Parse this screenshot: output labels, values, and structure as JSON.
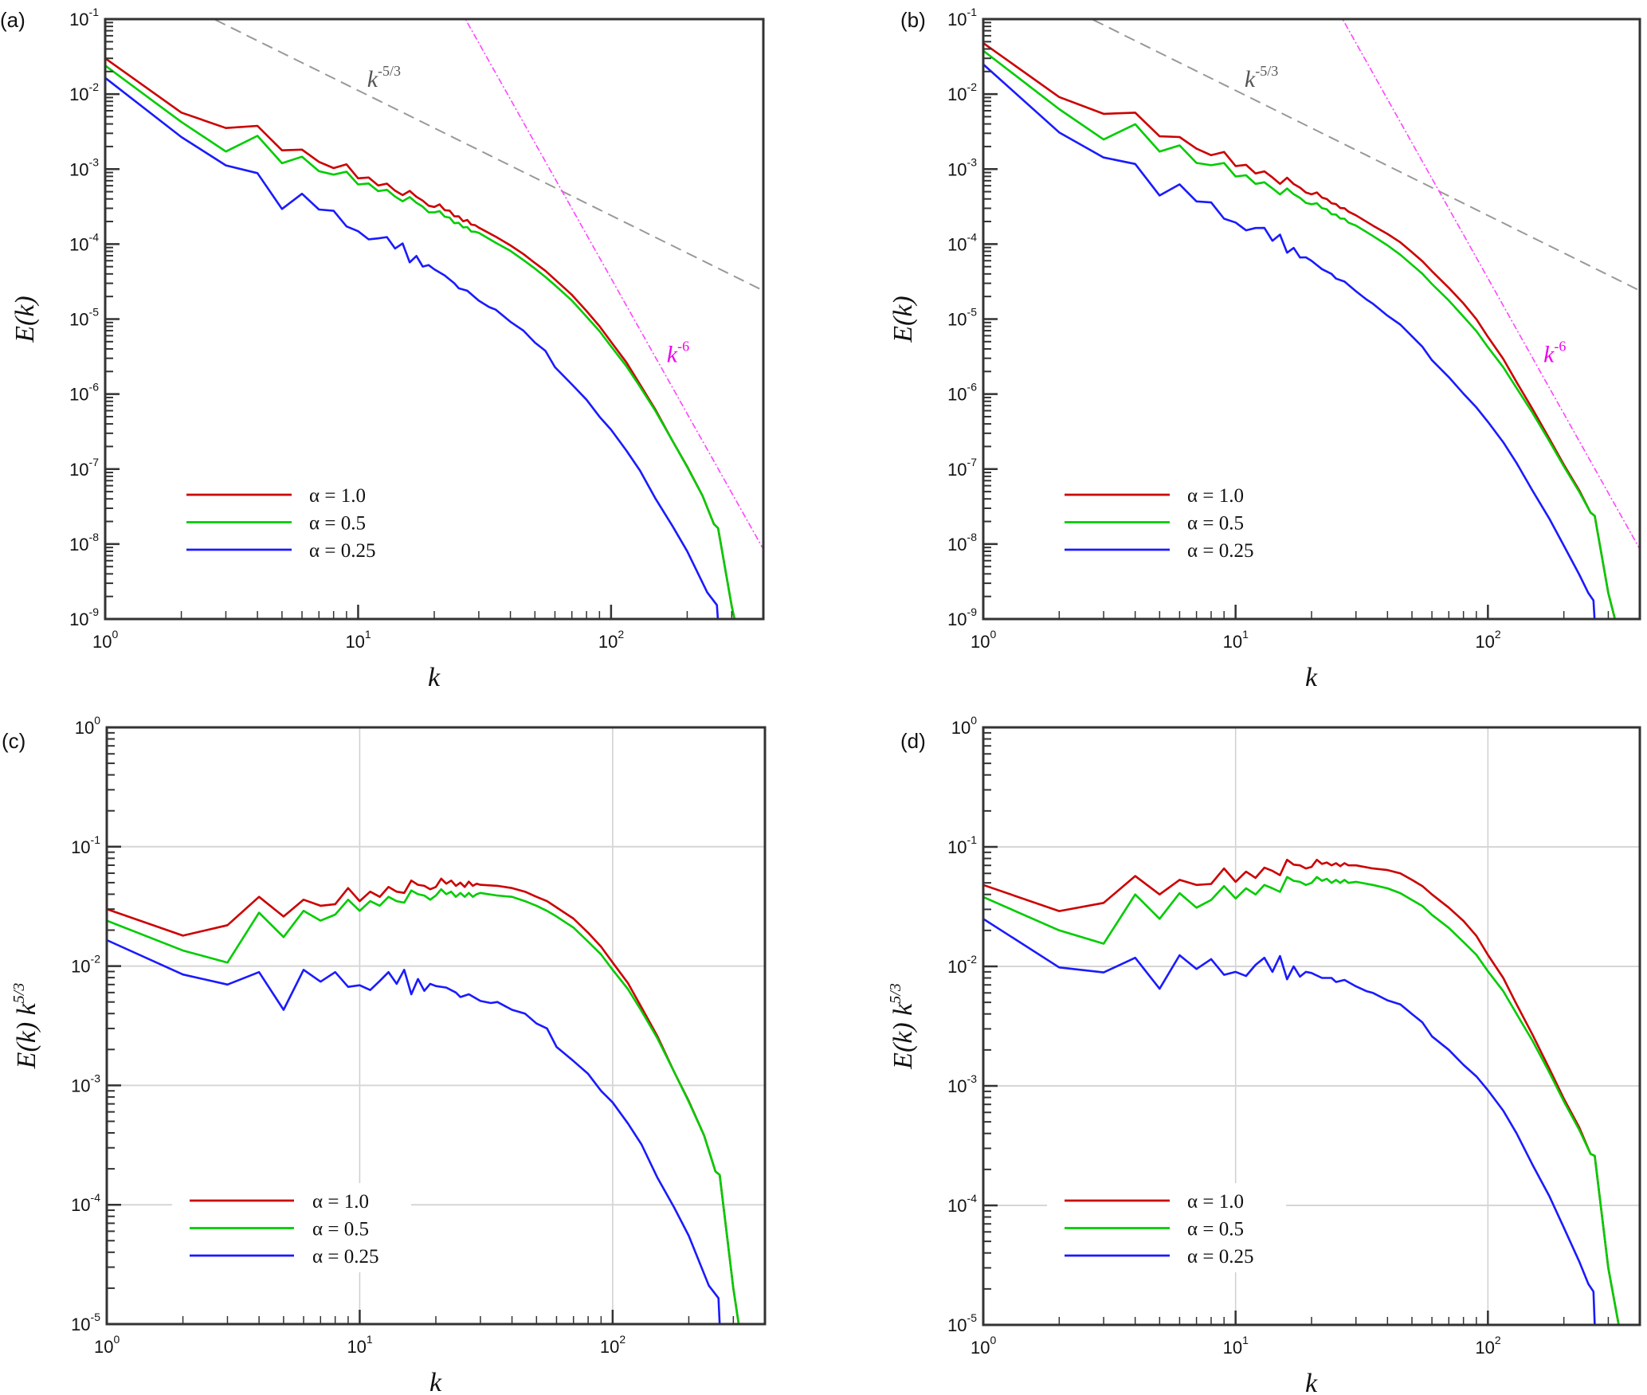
{
  "chart_data": [
    {
      "panel": "(a)",
      "type": "line",
      "xscale": "log",
      "yscale": "log",
      "xlabel": "k",
      "ylabel": "E(k)",
      "xlim": [
        1,
        400
      ],
      "ylim": [
        1e-09,
        0.1
      ],
      "xticks": [
        {
          "base": "10",
          "exp": "0"
        },
        {
          "base": "10",
          "exp": "1"
        },
        {
          "base": "10",
          "exp": "2"
        }
      ],
      "yticks": [
        {
          "base": "10",
          "exp": "-1"
        },
        {
          "base": "10",
          "exp": "-2"
        },
        {
          "base": "10",
          "exp": "-3"
        },
        {
          "base": "10",
          "exp": "-4"
        },
        {
          "base": "10",
          "exp": "-5"
        },
        {
          "base": "10",
          "exp": "-6"
        },
        {
          "base": "10",
          "exp": "-7"
        },
        {
          "base": "10",
          "exp": "-8"
        },
        {
          "base": "10",
          "exp": "-9"
        }
      ],
      "grid": false,
      "compensated": false,
      "source": "c",
      "reference_lines": [
        {
          "name": "k^-5/3",
          "slope": -1.6667,
          "coef": 0.52,
          "color": "#999999",
          "style": "dashed",
          "label": "k",
          "label_sup": "-5/3",
          "label_color": "#555555",
          "label_at_k": 11.5
        },
        {
          "name": "k^-6",
          "slope": -6,
          "coef": 35000000.0,
          "color": "#ff44ff",
          "style": "dashdot",
          "label": "k",
          "label_sup": "-6",
          "label_color": "#ee00ee",
          "label_at_k": 150
        }
      ],
      "legend": [
        {
          "label": "α = 1.0",
          "color": "#cc0000"
        },
        {
          "label": "α = 0.5",
          "color": "#00cc00"
        },
        {
          "label": "α = 0.25",
          "color": "#1a1aff"
        }
      ],
      "legend_position": "lower-left"
    },
    {
      "panel": "(b)",
      "type": "line",
      "xscale": "log",
      "yscale": "log",
      "xlabel": "k",
      "ylabel": "E(k)",
      "xlim": [
        1,
        400
      ],
      "ylim": [
        1e-09,
        0.1
      ],
      "xticks": [
        {
          "base": "10",
          "exp": "0"
        },
        {
          "base": "10",
          "exp": "1"
        },
        {
          "base": "10",
          "exp": "2"
        }
      ],
      "yticks": [
        {
          "base": "10",
          "exp": "-1"
        },
        {
          "base": "10",
          "exp": "-2"
        },
        {
          "base": "10",
          "exp": "-3"
        },
        {
          "base": "10",
          "exp": "-4"
        },
        {
          "base": "10",
          "exp": "-5"
        },
        {
          "base": "10",
          "exp": "-6"
        },
        {
          "base": "10",
          "exp": "-7"
        },
        {
          "base": "10",
          "exp": "-8"
        },
        {
          "base": "10",
          "exp": "-9"
        }
      ],
      "grid": false,
      "compensated": false,
      "source": "d",
      "reference_lines": [
        {
          "name": "k^-5/3",
          "slope": -1.6667,
          "coef": 0.52,
          "color": "#999999",
          "style": "dashed",
          "label": "k",
          "label_sup": "-5/3",
          "label_color": "#555555",
          "label_at_k": 11.5
        },
        {
          "name": "k^-6",
          "slope": -6,
          "coef": 35000000.0,
          "color": "#ff44ff",
          "style": "dashdot",
          "label": "k",
          "label_sup": "-6",
          "label_color": "#ee00ee",
          "label_at_k": 150
        }
      ],
      "legend": [
        {
          "label": "α = 1.0",
          "color": "#cc0000"
        },
        {
          "label": "α = 0.5",
          "color": "#00cc00"
        },
        {
          "label": "α = 0.25",
          "color": "#1a1aff"
        }
      ],
      "legend_position": "lower-left"
    },
    {
      "panel": "(c)",
      "type": "line",
      "xscale": "log",
      "yscale": "log",
      "xlabel": "k",
      "ylabel": "E(k) k",
      "ylabel_sup": "5/3",
      "xlim": [
        1,
        400
      ],
      "ylim": [
        1e-05,
        1
      ],
      "xticks": [
        {
          "base": "10",
          "exp": "0"
        },
        {
          "base": "10",
          "exp": "1"
        },
        {
          "base": "10",
          "exp": "2"
        }
      ],
      "yticks": [
        {
          "base": "10",
          "exp": "0"
        },
        {
          "base": "10",
          "exp": "-1"
        },
        {
          "base": "10",
          "exp": "-2"
        },
        {
          "base": "10",
          "exp": "-3"
        },
        {
          "base": "10",
          "exp": "-4"
        },
        {
          "base": "10",
          "exp": "-5"
        }
      ],
      "grid": true,
      "compensated": true,
      "series": [
        {
          "name": "α = 1.0",
          "color": "#cc0000",
          "k": [
            1,
            2,
            3,
            4,
            5,
            6,
            7,
            8,
            9,
            10,
            11,
            12,
            13,
            14,
            15,
            16,
            17,
            18,
            19,
            20,
            21,
            22,
            23,
            24,
            25,
            26,
            27,
            28,
            29,
            30,
            35,
            40,
            45,
            50,
            55,
            60,
            70,
            80,
            90,
            100,
            115,
            130,
            150,
            175,
            200,
            230,
            255,
            265,
            300,
            315
          ],
          "y": [
            0.03,
            0.018,
            0.022,
            0.038,
            0.026,
            0.036,
            0.032,
            0.033,
            0.045,
            0.035,
            0.042,
            0.038,
            0.046,
            0.042,
            0.041,
            0.052,
            0.048,
            0.047,
            0.044,
            0.046,
            0.054,
            0.049,
            0.052,
            0.047,
            0.05,
            0.046,
            0.051,
            0.047,
            0.049,
            0.048,
            0.047,
            0.045,
            0.042,
            0.038,
            0.035,
            0.031,
            0.025,
            0.019,
            0.0145,
            0.0107,
            0.0072,
            0.0045,
            0.0026,
            0.0013,
            0.00074,
            0.00038,
            0.00019,
            0.000178,
            2e-05,
            1e-05
          ]
        },
        {
          "name": "α = 0.5",
          "color": "#00cc00",
          "k": [
            1,
            2,
            3,
            4,
            5,
            6,
            7,
            8,
            9,
            10,
            11,
            12,
            13,
            14,
            15,
            16,
            17,
            18,
            19,
            20,
            21,
            22,
            23,
            24,
            25,
            26,
            27,
            28,
            29,
            30,
            35,
            40,
            45,
            50,
            55,
            60,
            70,
            80,
            90,
            100,
            115,
            130,
            150,
            175,
            200,
            230,
            255,
            265,
            300,
            315
          ],
          "y": [
            0.024,
            0.0135,
            0.0107,
            0.028,
            0.0175,
            0.029,
            0.024,
            0.027,
            0.036,
            0.029,
            0.035,
            0.032,
            0.038,
            0.035,
            0.034,
            0.043,
            0.04,
            0.039,
            0.036,
            0.039,
            0.044,
            0.04,
            0.042,
            0.038,
            0.041,
            0.038,
            0.041,
            0.038,
            0.04,
            0.041,
            0.039,
            0.038,
            0.035,
            0.032,
            0.029,
            0.026,
            0.021,
            0.016,
            0.0125,
            0.0093,
            0.0064,
            0.0042,
            0.0025,
            0.0013,
            0.00073,
            0.00038,
            0.00019,
            0.000178,
            2e-05,
            1e-05
          ]
        },
        {
          "name": "α = 0.25",
          "color": "#1a1aff",
          "k": [
            1,
            2,
            3,
            4,
            5,
            6,
            7,
            8,
            9,
            10,
            11,
            12,
            13,
            14,
            15,
            16,
            17,
            18,
            19,
            20,
            22,
            24,
            25,
            27,
            30,
            33,
            35,
            40,
            45,
            50,
            55,
            60,
            70,
            80,
            90,
            100,
            115,
            130,
            150,
            175,
            200,
            240,
            262,
            265
          ],
          "y": [
            0.0165,
            0.0085,
            0.007,
            0.0089,
            0.0043,
            0.0093,
            0.0074,
            0.0089,
            0.0067,
            0.0069,
            0.0063,
            0.0075,
            0.0089,
            0.0071,
            0.0093,
            0.0058,
            0.0078,
            0.0062,
            0.0071,
            0.0068,
            0.0066,
            0.006,
            0.0055,
            0.0058,
            0.0051,
            0.0049,
            0.005,
            0.0043,
            0.004,
            0.0033,
            0.003,
            0.0021,
            0.0016,
            0.00125,
            0.0009,
            0.00072,
            0.00048,
            0.00032,
            0.00017,
            9.5e-05,
            5.5e-05,
            2.1e-05,
            1.65e-05,
            1e-05
          ]
        }
      ],
      "legend": [
        {
          "label": "α = 1.0",
          "color": "#cc0000"
        },
        {
          "label": "α = 0.5",
          "color": "#00cc00"
        },
        {
          "label": "α = 0.25",
          "color": "#1a1aff"
        }
      ],
      "legend_position": "lower-left"
    },
    {
      "panel": "(d)",
      "type": "line",
      "xscale": "log",
      "yscale": "log",
      "xlabel": "k",
      "ylabel": "E(k) k",
      "ylabel_sup": "5/3",
      "xlim": [
        1,
        400
      ],
      "ylim": [
        1e-05,
        1
      ],
      "xticks": [
        {
          "base": "10",
          "exp": "0"
        },
        {
          "base": "10",
          "exp": "1"
        },
        {
          "base": "10",
          "exp": "2"
        }
      ],
      "yticks": [
        {
          "base": "10",
          "exp": "0"
        },
        {
          "base": "10",
          "exp": "-1"
        },
        {
          "base": "10",
          "exp": "-2"
        },
        {
          "base": "10",
          "exp": "-3"
        },
        {
          "base": "10",
          "exp": "-4"
        },
        {
          "base": "10",
          "exp": "-5"
        }
      ],
      "grid": true,
      "compensated": true,
      "series": [
        {
          "name": "α = 1.0",
          "color": "#cc0000",
          "k": [
            1,
            2,
            3,
            4,
            5,
            6,
            7,
            8,
            9,
            10,
            11,
            12,
            13,
            14,
            15,
            16,
            17,
            18,
            19,
            20,
            21,
            22,
            23,
            24,
            25,
            26,
            27,
            28,
            30,
            35,
            40,
            45,
            50,
            55,
            60,
            70,
            80,
            90,
            100,
            115,
            130,
            150,
            175,
            200,
            230,
            255,
            265,
            300,
            330
          ],
          "y": [
            0.048,
            0.029,
            0.034,
            0.057,
            0.04,
            0.053,
            0.048,
            0.049,
            0.066,
            0.051,
            0.062,
            0.055,
            0.067,
            0.063,
            0.058,
            0.078,
            0.071,
            0.07,
            0.066,
            0.068,
            0.078,
            0.072,
            0.074,
            0.07,
            0.073,
            0.069,
            0.073,
            0.07,
            0.07,
            0.066,
            0.064,
            0.06,
            0.053,
            0.047,
            0.04,
            0.031,
            0.024,
            0.018,
            0.0125,
            0.008,
            0.0048,
            0.0027,
            0.0014,
            0.00078,
            0.00045,
            0.00027,
            0.00026,
            3e-05,
            1e-05
          ]
        },
        {
          "name": "α = 0.5",
          "color": "#00cc00",
          "k": [
            1,
            2,
            3,
            4,
            5,
            6,
            7,
            8,
            9,
            10,
            11,
            12,
            13,
            14,
            15,
            16,
            17,
            18,
            19,
            20,
            21,
            22,
            23,
            24,
            25,
            26,
            27,
            28,
            30,
            35,
            40,
            45,
            50,
            55,
            60,
            70,
            80,
            90,
            100,
            115,
            130,
            150,
            175,
            200,
            230,
            255,
            265,
            300,
            330
          ],
          "y": [
            0.038,
            0.02,
            0.0155,
            0.04,
            0.025,
            0.041,
            0.031,
            0.036,
            0.047,
            0.037,
            0.045,
            0.04,
            0.048,
            0.045,
            0.042,
            0.056,
            0.052,
            0.051,
            0.048,
            0.05,
            0.056,
            0.052,
            0.054,
            0.05,
            0.053,
            0.05,
            0.053,
            0.05,
            0.051,
            0.048,
            0.045,
            0.041,
            0.036,
            0.032,
            0.027,
            0.021,
            0.016,
            0.0125,
            0.0091,
            0.0062,
            0.004,
            0.0024,
            0.0013,
            0.00074,
            0.00043,
            0.00027,
            0.00026,
            3e-05,
            1e-05
          ]
        },
        {
          "name": "α = 0.25",
          "color": "#1a1aff",
          "k": [
            1,
            2,
            3,
            4,
            5,
            6,
            7,
            8,
            9,
            10,
            11,
            12,
            13,
            14,
            15,
            16,
            17,
            18,
            19,
            20,
            22,
            24,
            25,
            27,
            30,
            33,
            35,
            40,
            45,
            50,
            55,
            60,
            70,
            80,
            90,
            100,
            115,
            130,
            150,
            175,
            200,
            230,
            250,
            262,
            265
          ],
          "y": [
            0.025,
            0.0098,
            0.0089,
            0.0118,
            0.0065,
            0.0124,
            0.0095,
            0.0115,
            0.0085,
            0.009,
            0.0083,
            0.0103,
            0.0118,
            0.009,
            0.0122,
            0.0078,
            0.01,
            0.0082,
            0.009,
            0.0088,
            0.008,
            0.008,
            0.0074,
            0.0077,
            0.0068,
            0.0062,
            0.006,
            0.0052,
            0.0048,
            0.004,
            0.0034,
            0.0026,
            0.002,
            0.0015,
            0.0012,
            0.00092,
            0.00062,
            0.0004,
            0.00022,
            0.00012,
            6.5e-05,
            3.4e-05,
            2.2e-05,
            1.9e-05,
            1e-05
          ]
        }
      ],
      "legend": [
        {
          "label": "α = 1.0",
          "color": "#cc0000"
        },
        {
          "label": "α = 0.5",
          "color": "#00cc00"
        },
        {
          "label": "α = 0.25",
          "color": "#1a1aff"
        }
      ],
      "legend_position": "lower-left"
    }
  ]
}
